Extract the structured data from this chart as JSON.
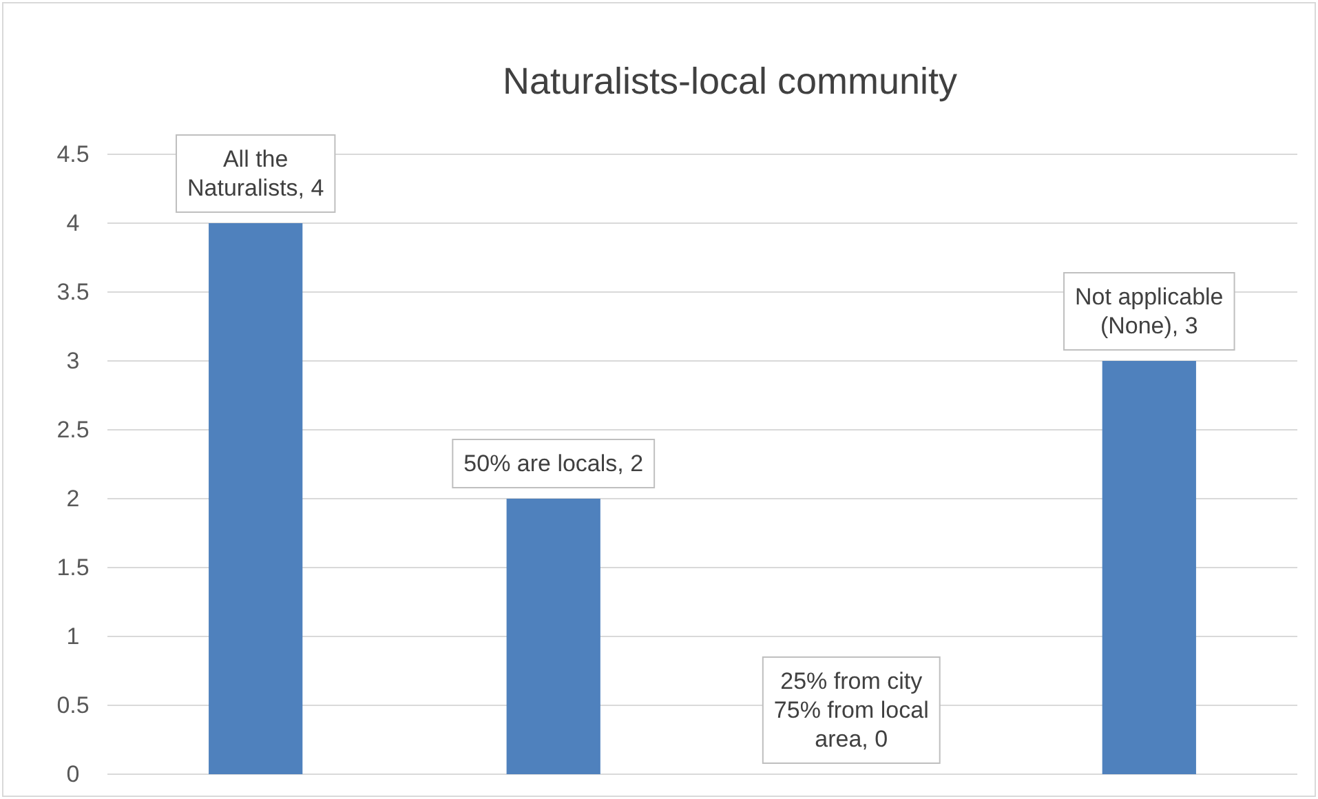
{
  "chart_data": {
    "type": "bar",
    "title": "Naturalists-local community",
    "categories": [
      null,
      null,
      null,
      null
    ],
    "values": [
      4,
      2,
      0,
      3
    ],
    "value_labels": [
      "All the Naturalists, 4",
      "50% are locals, 2",
      "25% from city 75% from local area, 0",
      "Not applicable (None), 3"
    ],
    "color": "#4f81bd",
    "ylim": [
      0,
      4.5
    ],
    "yticks": [
      0,
      0.5,
      1,
      1.5,
      2,
      2.5,
      3,
      3.5,
      4,
      4.5
    ],
    "grid": "y",
    "tick_labels": "y"
  }
}
